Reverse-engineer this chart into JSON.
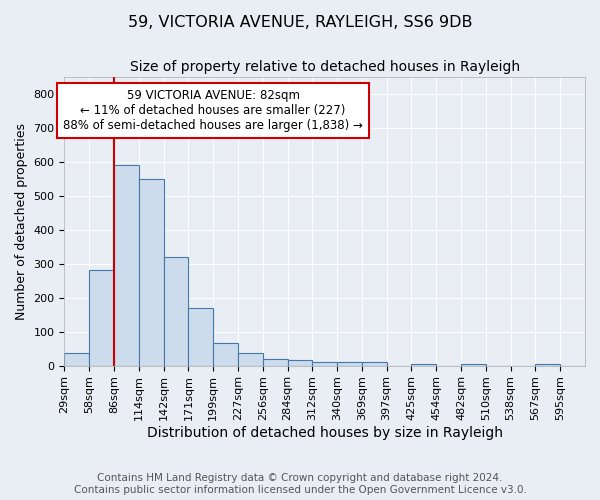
{
  "title1": "59, VICTORIA AVENUE, RAYLEIGH, SS6 9DB",
  "title2": "Size of property relative to detached houses in Rayleigh",
  "xlabel": "Distribution of detached houses by size in Rayleigh",
  "ylabel": "Number of detached properties",
  "footer1": "Contains HM Land Registry data © Crown copyright and database right 2024.",
  "footer2": "Contains public sector information licensed under the Open Government Licence v3.0.",
  "bin_edges": [
    29,
    57,
    85,
    113,
    141,
    169,
    197,
    225,
    253,
    281,
    309,
    337,
    365,
    393,
    421,
    449,
    477,
    505,
    533,
    561,
    589,
    617
  ],
  "bin_labels": [
    "29sqm",
    "58sqm",
    "86sqm",
    "114sqm",
    "142sqm",
    "171sqm",
    "199sqm",
    "227sqm",
    "256sqm",
    "284sqm",
    "312sqm",
    "340sqm",
    "369sqm",
    "397sqm",
    "425sqm",
    "454sqm",
    "482sqm",
    "510sqm",
    "538sqm",
    "567sqm",
    "595sqm"
  ],
  "bar_heights": [
    38,
    280,
    590,
    550,
    320,
    170,
    65,
    38,
    20,
    15,
    10,
    10,
    10,
    0,
    4,
    0,
    4,
    0,
    0,
    4,
    0
  ],
  "bar_color": "#cddcec",
  "bar_edge_color": "#4477aa",
  "property_line_x": 85,
  "annotation_text": "59 VICTORIA AVENUE: 82sqm\n← 11% of detached houses are smaller (227)\n88% of semi-detached houses are larger (1,838) →",
  "annotation_box_color": "#ffffff",
  "annotation_box_edge": "#cc0000",
  "vline_color": "#cc0000",
  "ylim": [
    0,
    850
  ],
  "yticks": [
    0,
    100,
    200,
    300,
    400,
    500,
    600,
    700,
    800
  ],
  "background_color": "#e8eef4",
  "axes_background": "#e8eef4",
  "grid_color": "#ffffff",
  "title1_fontsize": 11.5,
  "title2_fontsize": 10,
  "xlabel_fontsize": 10,
  "ylabel_fontsize": 9,
  "tick_fontsize": 8,
  "annotation_fontsize": 8.5,
  "footer_fontsize": 7.5
}
